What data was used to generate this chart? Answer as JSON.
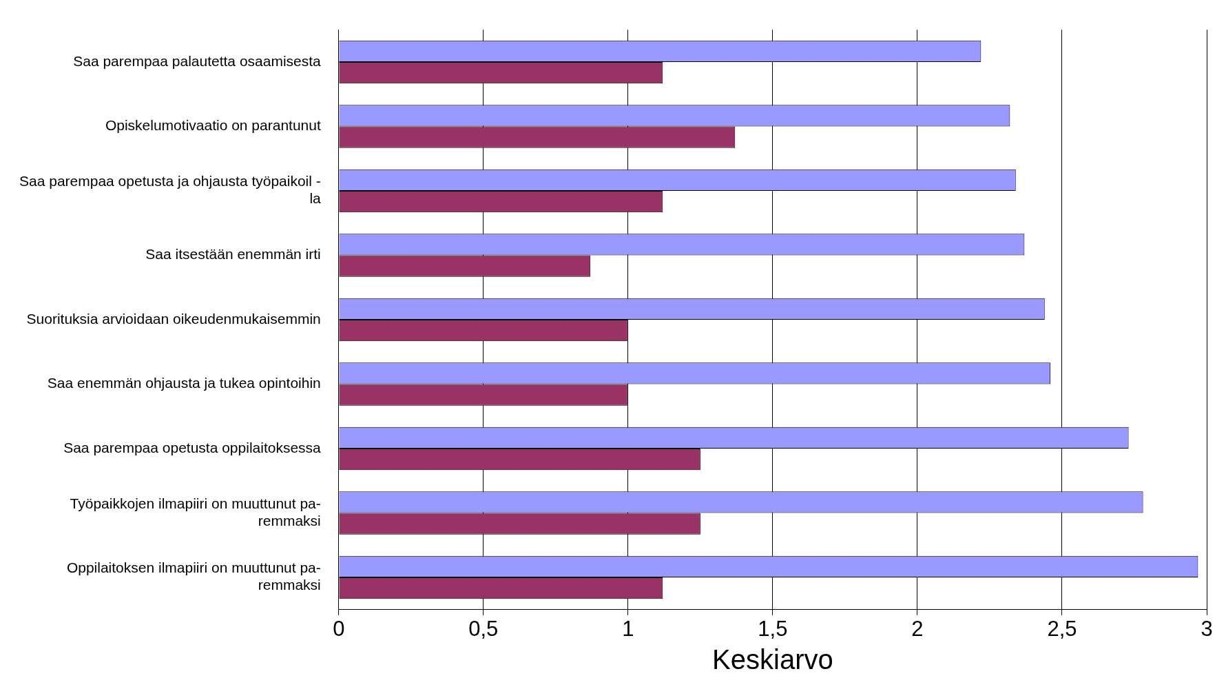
{
  "chart_data": {
    "type": "bar",
    "orientation": "horizontal",
    "xlabel": "Keskiarvo",
    "categories": [
      "Saa parempaa palautetta osaamisesta",
      "Opiskelumotivaatio on parantunut",
      "Saa parempaa opetusta ja ohjausta työpaikoil -\nla",
      "Saa itsestään enemmän irti",
      "Suorituksia arvioidaan oikeudenmukaisemmin",
      "Saa enemmän ohjausta ja tukea opintoihin",
      "Saa parempaa opetusta oppilaitoksessa",
      "Työpaikkojen ilmapiiri on muuttunut pa-\nremmaksi",
      "Oppilaitoksen ilmapiiri on muuttunut pa-\nremmaksi"
    ],
    "series": [
      {
        "color": "#9999ff",
        "values": [
          2.22,
          2.32,
          2.34,
          2.37,
          2.44,
          2.46,
          2.73,
          2.78,
          2.97
        ]
      },
      {
        "color": "#993366",
        "values": [
          1.12,
          1.37,
          1.12,
          0.87,
          1.0,
          1.0,
          1.25,
          1.25,
          1.12
        ]
      }
    ],
    "xlim": [
      0,
      3
    ],
    "xticks": [
      0,
      {
        "value": 0.5,
        "label": "0,5"
      },
      1,
      {
        "value": 1.5,
        "label": "1,5"
      },
      2,
      {
        "value": 2.5,
        "label": "2,5"
      },
      3
    ],
    "grid": "x",
    "legend": false
  }
}
